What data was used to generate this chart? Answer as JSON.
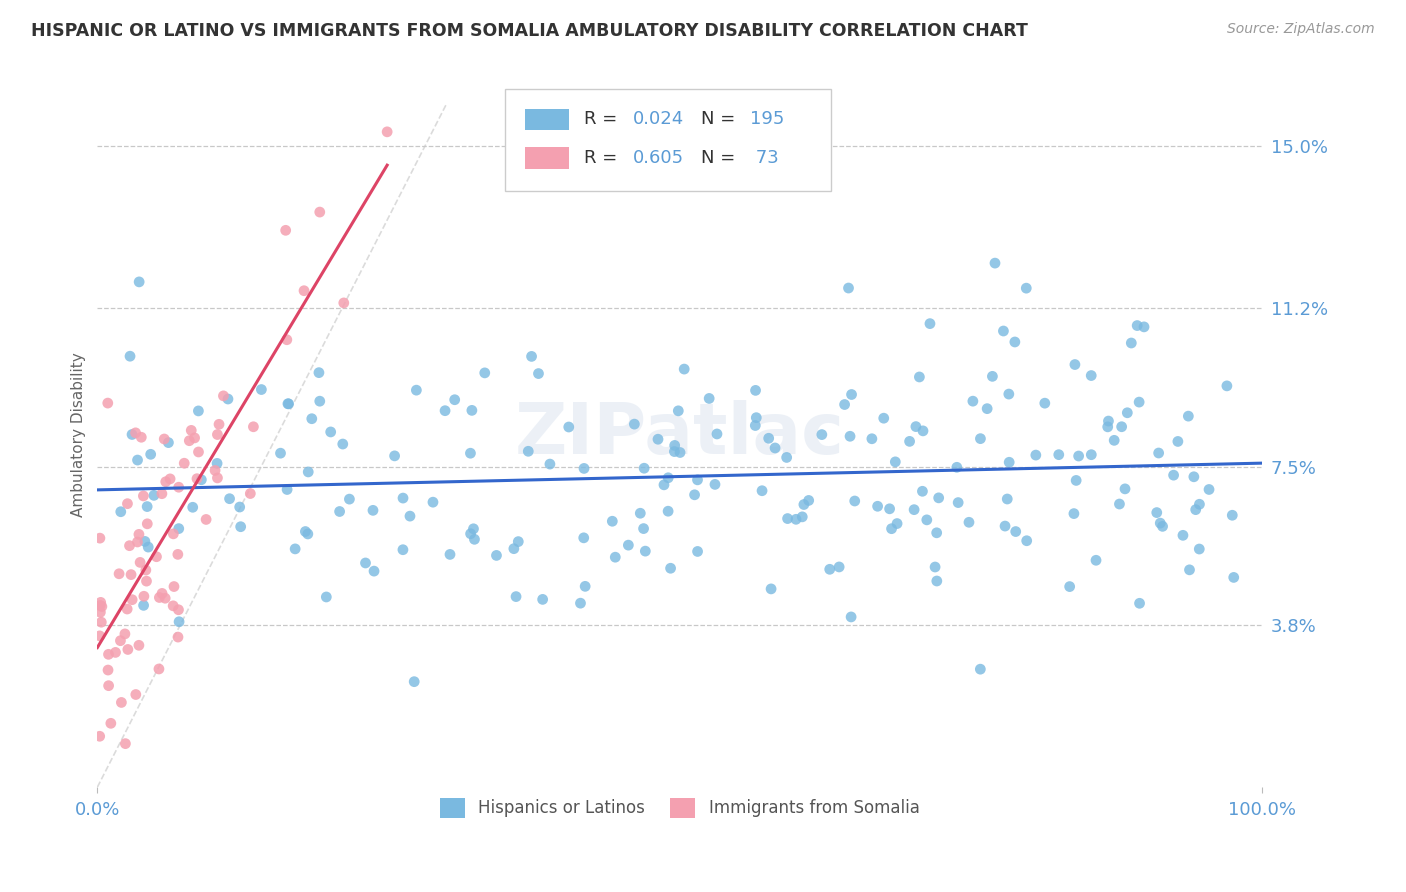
{
  "title": "HISPANIC OR LATINO VS IMMIGRANTS FROM SOMALIA AMBULATORY DISABILITY CORRELATION CHART",
  "source": "Source: ZipAtlas.com",
  "ylabel": "Ambulatory Disability",
  "x_min": 0.0,
  "x_max": 100.0,
  "y_min": 0.0,
  "y_max": 16.5,
  "y_ticks": [
    3.8,
    7.5,
    11.2,
    15.0
  ],
  "x_tick_labels": [
    "0.0%",
    "100.0%"
  ],
  "y_tick_labels": [
    "3.8%",
    "7.5%",
    "11.2%",
    "15.0%"
  ],
  "blue_color": "#7ab9e0",
  "pink_color": "#f4a0b0",
  "blue_line_color": "#3366cc",
  "pink_line_color": "#dd4466",
  "diag_line_color": "#cccccc",
  "R_blue": 0.024,
  "N_blue": 195,
  "R_pink": 0.605,
  "N_pink": 73,
  "watermark": "ZIPatlас",
  "title_color": "#333333",
  "tick_color": "#5b9bd5",
  "grid_color": "#c8c8c8",
  "background_color": "#ffffff",
  "legend_text_color": "#333333"
}
